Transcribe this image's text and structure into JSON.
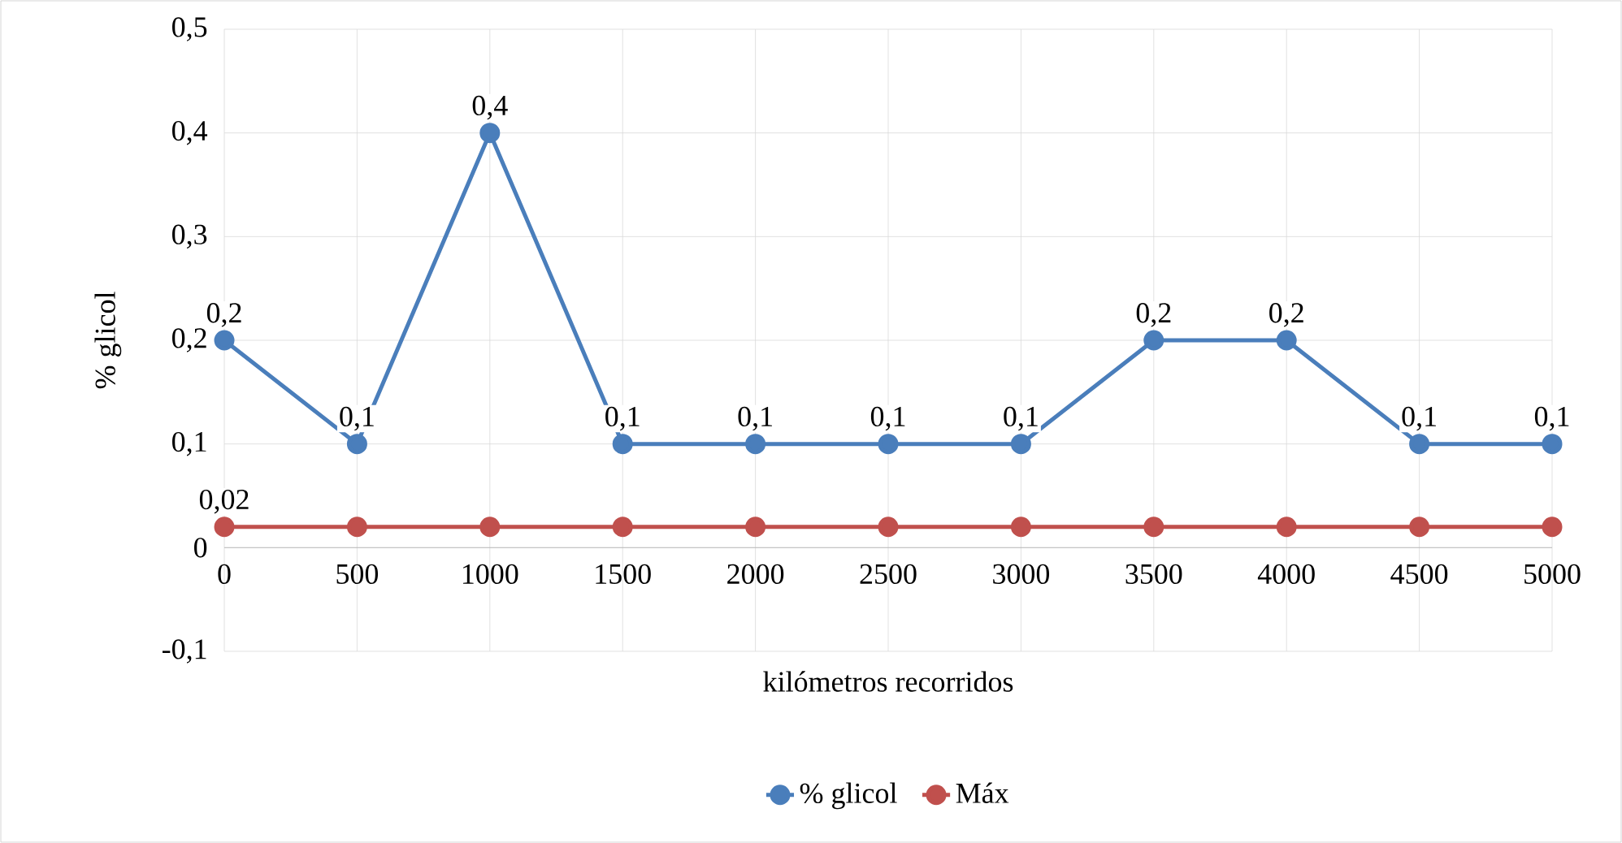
{
  "chart_data": {
    "type": "line",
    "xlabel": "kilómetros recorridos",
    "ylabel": "% glicol",
    "categories": [
      "0",
      "500",
      "1000",
      "1500",
      "2000",
      "2500",
      "3000",
      "3500",
      "4000",
      "4500",
      "5000"
    ],
    "series": [
      {
        "name": "% glicol",
        "color": "#4a7ebb",
        "values": [
          0.2,
          0.1,
          0.4,
          0.1,
          0.1,
          0.1,
          0.1,
          0.2,
          0.2,
          0.1,
          0.1
        ],
        "value_labels": [
          "0,2",
          "0,1",
          "0,4",
          "0,1",
          "0,1",
          "0,1",
          "0,1",
          "0,2",
          "0,2",
          "0,1",
          "0,1"
        ]
      },
      {
        "name": "Máx",
        "color": "#c0504d",
        "values": [
          0.02,
          0.02,
          0.02,
          0.02,
          0.02,
          0.02,
          0.02,
          0.02,
          0.02,
          0.02,
          0.02
        ],
        "value_labels": [
          "0,02",
          null,
          null,
          null,
          null,
          null,
          null,
          null,
          null,
          null,
          null
        ]
      }
    ],
    "ylim": [
      -0.1,
      0.5
    ],
    "yticks": [
      {
        "value": -0.1,
        "label": "-0,1"
      },
      {
        "value": 0,
        "label": "0"
      },
      {
        "value": 0.1,
        "label": "0,1"
      },
      {
        "value": 0.2,
        "label": "0,2"
      },
      {
        "value": 0.3,
        "label": "0,3"
      },
      {
        "value": 0.4,
        "label": "0,4"
      },
      {
        "value": 0.5,
        "label": "0,5"
      }
    ],
    "grid": true,
    "legend": "bottom",
    "marker": "circle",
    "line_style": "solid"
  }
}
